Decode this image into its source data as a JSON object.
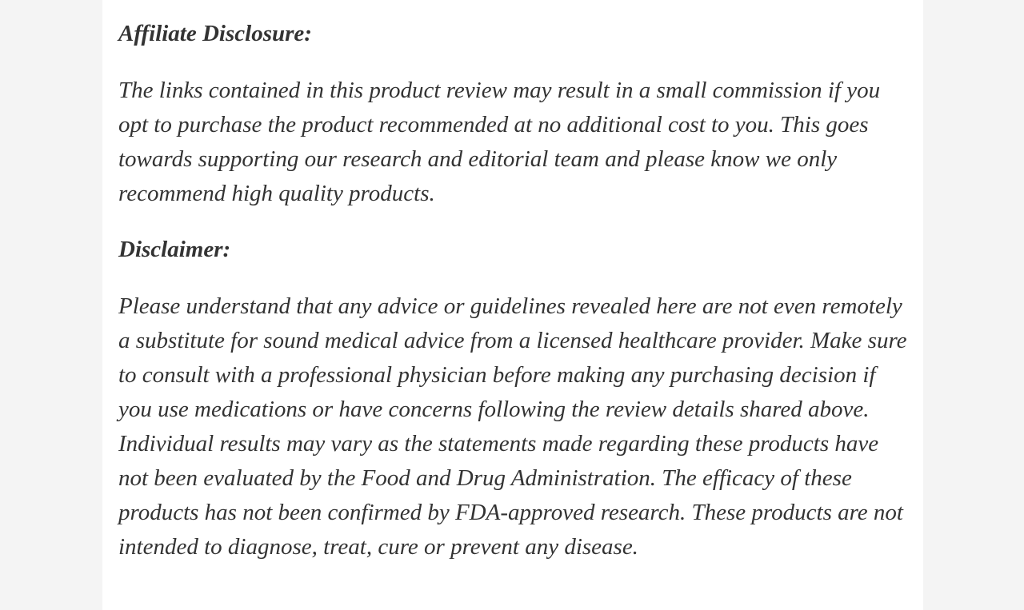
{
  "page": {
    "background_color": "#f4f4f4",
    "content_background": "#ffffff",
    "text_color": "#333333"
  },
  "article": {
    "sections": [
      {
        "heading": "Affiliate Disclosure:",
        "paragraphs": [
          "The links contained in this product review may result in a small commission if you opt to purchase the product recommended at no additional cost to you. This goes towards supporting our research and editorial team and please know we only recommend high quality products."
        ]
      },
      {
        "heading": "Disclaimer:",
        "paragraphs": [
          "Please understand that any advice or guidelines revealed here are not even remotely a substitute for sound medical advice from a licensed healthcare provider. Make sure to consult with a professional physician before making any purchasing decision if you use medications or have concerns following the review details shared above. Individual results may vary as the statements made regarding these products have not been evaluated by the Food and Drug Administration. The efficacy of these products has not been confirmed by FDA-approved research. These products are not intended to diagnose, treat, cure or prevent any disease."
        ]
      }
    ]
  }
}
